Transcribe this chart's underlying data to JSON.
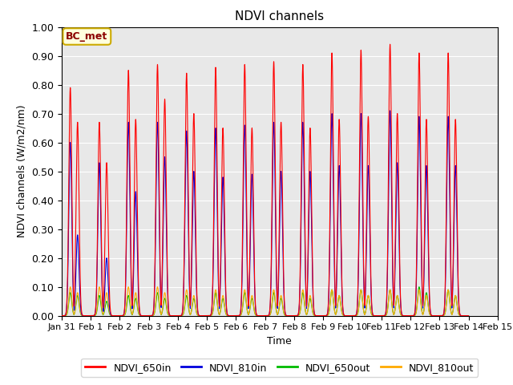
{
  "title": "NDVI channels",
  "ylabel": "NDVI channels (W/m2/nm)",
  "xlabel": "Time",
  "ylim": [
    0.0,
    1.0
  ],
  "background_color": "#e8e8e8",
  "annotation_text": "BC_met",
  "annotation_bg": "#ffffdd",
  "annotation_border": "#ccaa00",
  "legend_labels": [
    "NDVI_650in",
    "NDVI_810in",
    "NDVI_650out",
    "NDVI_810out"
  ],
  "legend_colors": [
    "#ff0000",
    "#0000dd",
    "#00bb00",
    "#ffaa00"
  ],
  "colors": {
    "NDVI_650in": "#ff0000",
    "NDVI_810in": "#0000dd",
    "NDVI_650out": "#00bb00",
    "NDVI_810out": "#ffaa00"
  },
  "day_peaks": {
    "NDVI_650in": [
      0.79,
      0.67,
      0.85,
      0.87,
      0.84,
      0.86,
      0.87,
      0.88,
      0.87,
      0.91,
      0.92,
      0.94,
      0.91,
      0.91
    ],
    "NDVI_810in": [
      0.6,
      0.53,
      0.67,
      0.67,
      0.64,
      0.65,
      0.66,
      0.67,
      0.67,
      0.7,
      0.7,
      0.71,
      0.69,
      0.69
    ],
    "NDVI_650out": [
      0.08,
      0.07,
      0.07,
      0.08,
      0.07,
      0.08,
      0.08,
      0.08,
      0.08,
      0.09,
      0.09,
      0.09,
      0.1,
      0.09
    ],
    "NDVI_810out": [
      0.1,
      0.1,
      0.1,
      0.1,
      0.09,
      0.09,
      0.09,
      0.09,
      0.09,
      0.09,
      0.09,
      0.09,
      0.09,
      0.09
    ]
  },
  "secondary_peaks": {
    "NDVI_650in": [
      0.67,
      0.53,
      0.68,
      0.75,
      0.7,
      0.65,
      0.65,
      0.67,
      0.65,
      0.68,
      0.69,
      0.7,
      0.68,
      0.68
    ],
    "NDVI_810in": [
      0.28,
      0.2,
      0.43,
      0.55,
      0.5,
      0.48,
      0.49,
      0.5,
      0.5,
      0.52,
      0.52,
      0.53,
      0.52,
      0.52
    ],
    "NDVI_650out": [
      0.07,
      0.05,
      0.06,
      0.06,
      0.06,
      0.06,
      0.06,
      0.06,
      0.06,
      0.07,
      0.07,
      0.07,
      0.08,
      0.07
    ],
    "NDVI_810out": [
      0.08,
      0.08,
      0.08,
      0.08,
      0.07,
      0.07,
      0.07,
      0.07,
      0.07,
      0.07,
      0.07,
      0.07,
      0.07,
      0.07
    ]
  },
  "num_days": 14,
  "x_tick_labels": [
    "Jan 31",
    "Feb 1",
    "Feb 2",
    "Feb 3",
    "Feb 4",
    "Feb 5",
    "Feb 6",
    "Feb 7",
    "Feb 8",
    "Feb 9",
    "Feb 10",
    "Feb 11",
    "Feb 12",
    "Feb 13",
    "Feb 14",
    "Feb 15"
  ],
  "x_tick_positions": [
    0,
    1,
    2,
    3,
    4,
    5,
    6,
    7,
    8,
    9,
    10,
    11,
    12,
    13,
    14,
    15
  ]
}
